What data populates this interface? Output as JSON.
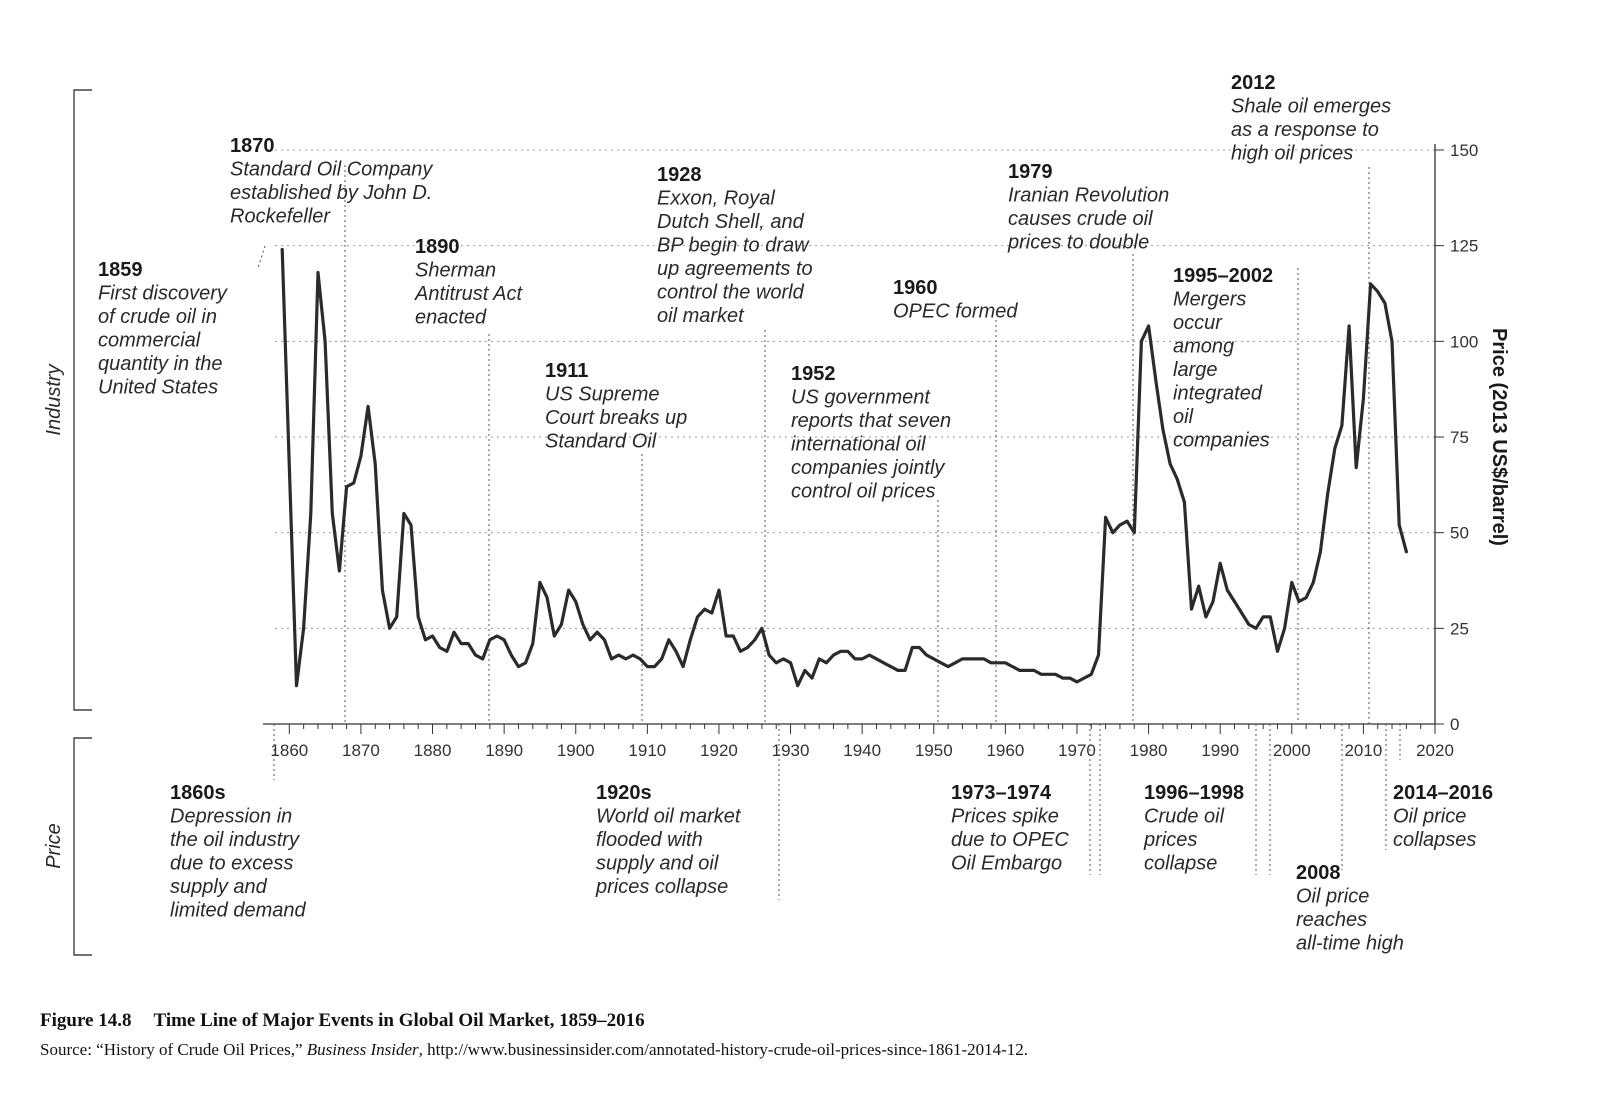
{
  "chart_data": {
    "type": "line",
    "title": "",
    "xlabel": "",
    "ylabel": "Price (2013 US$/barrel)",
    "xlim": [
      1858,
      2020
    ],
    "ylim": [
      0,
      150
    ],
    "x_ticks": [
      "1860",
      "1870",
      "1880",
      "1890",
      "1900",
      "1910",
      "1920",
      "1930",
      "1940",
      "1950",
      "1960",
      "1970",
      "1980",
      "1990",
      "2000",
      "2010",
      "2020"
    ],
    "y_ticks": [
      "0",
      "25",
      "50",
      "75",
      "100",
      "125",
      "150"
    ],
    "grid": "horizontal dotted",
    "bracket_labels": [
      "Industry",
      "Price"
    ],
    "series": [
      {
        "points": [
          [
            1859,
            124
          ],
          [
            1861,
            10
          ],
          [
            1862,
            25
          ],
          [
            1863,
            55
          ],
          [
            1864,
            118
          ],
          [
            1865,
            100
          ],
          [
            1866,
            55
          ],
          [
            1867,
            40
          ],
          [
            1868,
            62
          ],
          [
            1869,
            63
          ],
          [
            1870,
            70
          ],
          [
            1871,
            83
          ],
          [
            1872,
            68
          ],
          [
            1873,
            35
          ],
          [
            1874,
            25
          ],
          [
            1875,
            28
          ],
          [
            1876,
            55
          ],
          [
            1877,
            52
          ],
          [
            1878,
            28
          ],
          [
            1879,
            22
          ],
          [
            1880,
            23
          ],
          [
            1881,
            20
          ],
          [
            1882,
            19
          ],
          [
            1883,
            24
          ],
          [
            1884,
            21
          ],
          [
            1885,
            21
          ],
          [
            1886,
            18
          ],
          [
            1887,
            17
          ],
          [
            1888,
            22
          ],
          [
            1889,
            23
          ],
          [
            1890,
            22
          ],
          [
            1891,
            18
          ],
          [
            1892,
            15
          ],
          [
            1893,
            16
          ],
          [
            1894,
            21
          ],
          [
            1895,
            37
          ],
          [
            1896,
            33
          ],
          [
            1897,
            23
          ],
          [
            1898,
            26
          ],
          [
            1899,
            35
          ],
          [
            1900,
            32
          ],
          [
            1901,
            26
          ],
          [
            1902,
            22
          ],
          [
            1903,
            24
          ],
          [
            1904,
            22
          ],
          [
            1905,
            17
          ],
          [
            1906,
            18
          ],
          [
            1907,
            17
          ],
          [
            1908,
            18
          ],
          [
            1909,
            17
          ],
          [
            1910,
            15
          ],
          [
            1911,
            15
          ],
          [
            1912,
            17
          ],
          [
            1913,
            22
          ],
          [
            1914,
            19
          ],
          [
            1915,
            15
          ],
          [
            1916,
            22
          ],
          [
            1917,
            28
          ],
          [
            1918,
            30
          ],
          [
            1919,
            29
          ],
          [
            1920,
            35
          ],
          [
            1921,
            23
          ],
          [
            1922,
            23
          ],
          [
            1923,
            19
          ],
          [
            1924,
            20
          ],
          [
            1925,
            22
          ],
          [
            1926,
            25
          ],
          [
            1927,
            18
          ],
          [
            1928,
            16
          ],
          [
            1929,
            17
          ],
          [
            1930,
            16
          ],
          [
            1931,
            10
          ],
          [
            1932,
            14
          ],
          [
            1933,
            12
          ],
          [
            1934,
            17
          ],
          [
            1935,
            16
          ],
          [
            1936,
            18
          ],
          [
            1937,
            19
          ],
          [
            1938,
            19
          ],
          [
            1939,
            17
          ],
          [
            1940,
            17
          ],
          [
            1941,
            18
          ],
          [
            1942,
            17
          ],
          [
            1943,
            16
          ],
          [
            1944,
            15
          ],
          [
            1945,
            14
          ],
          [
            1946,
            14
          ],
          [
            1947,
            20
          ],
          [
            1948,
            20
          ],
          [
            1949,
            18
          ],
          [
            1950,
            17
          ],
          [
            1951,
            16
          ],
          [
            1952,
            15
          ],
          [
            1953,
            16
          ],
          [
            1954,
            17
          ],
          [
            1955,
            17
          ],
          [
            1956,
            17
          ],
          [
            1957,
            17
          ],
          [
            1958,
            16
          ],
          [
            1959,
            16
          ],
          [
            1960,
            16
          ],
          [
            1961,
            15
          ],
          [
            1962,
            14
          ],
          [
            1963,
            14
          ],
          [
            1964,
            14
          ],
          [
            1965,
            13
          ],
          [
            1966,
            13
          ],
          [
            1967,
            13
          ],
          [
            1968,
            12
          ],
          [
            1969,
            12
          ],
          [
            1970,
            11
          ],
          [
            1971,
            12
          ],
          [
            1972,
            13
          ],
          [
            1973,
            18
          ],
          [
            1974,
            54
          ],
          [
            1975,
            50
          ],
          [
            1976,
            52
          ],
          [
            1977,
            53
          ],
          [
            1978,
            50
          ],
          [
            1979,
            100
          ],
          [
            1980,
            104
          ],
          [
            1981,
            90
          ],
          [
            1982,
            77
          ],
          [
            1983,
            68
          ],
          [
            1984,
            64
          ],
          [
            1985,
            58
          ],
          [
            1986,
            30
          ],
          [
            1987,
            36
          ],
          [
            1988,
            28
          ],
          [
            1989,
            32
          ],
          [
            1990,
            42
          ],
          [
            1991,
            35
          ],
          [
            1992,
            32
          ],
          [
            1993,
            29
          ],
          [
            1994,
            26
          ],
          [
            1995,
            25
          ],
          [
            1996,
            28
          ],
          [
            1997,
            28
          ],
          [
            1998,
            19
          ],
          [
            1999,
            25
          ],
          [
            2000,
            37
          ],
          [
            2001,
            32
          ],
          [
            2002,
            33
          ],
          [
            2003,
            37
          ],
          [
            2004,
            45
          ],
          [
            2005,
            60
          ],
          [
            2006,
            72
          ],
          [
            2007,
            78
          ],
          [
            2008,
            104
          ],
          [
            2009,
            67
          ],
          [
            2010,
            85
          ],
          [
            2011,
            115
          ],
          [
            2012,
            113
          ],
          [
            2013,
            110
          ],
          [
            2014,
            100
          ],
          [
            2015,
            52
          ],
          [
            2016,
            45
          ]
        ]
      }
    ],
    "annotations": [
      {
        "year": "1870",
        "lines": [
          "Standard Oil Company",
          "established by John D.",
          "Rockefeller"
        ]
      },
      {
        "year": "1859",
        "lines": [
          "First discovery",
          "of crude oil in",
          "commercial",
          "quantity in the",
          "United States"
        ]
      },
      {
        "year": "1890",
        "lines": [
          "Sherman",
          "Antitrust Act",
          "enacted"
        ]
      },
      {
        "year": "1911",
        "lines": [
          "US Supreme",
          "Court breaks up",
          "Standard Oil"
        ]
      },
      {
        "year": "1928",
        "lines": [
          "Exxon, Royal",
          "Dutch Shell, and",
          "BP begin to draw",
          "up agreements to",
          "control the world",
          "oil market"
        ]
      },
      {
        "year": "1952",
        "lines": [
          "US government",
          "reports that seven",
          "international oil",
          "companies jointly",
          "control oil prices"
        ]
      },
      {
        "year": "1960",
        "lines": [
          "OPEC formed"
        ]
      },
      {
        "year": "1979",
        "lines": [
          "Iranian Revolution",
          "causes crude oil",
          "prices to double"
        ]
      },
      {
        "year": "1995–2002",
        "lines": [
          "Mergers",
          "occur",
          "among",
          "large",
          "integrated",
          "oil",
          "companies"
        ]
      },
      {
        "year": "2012",
        "lines": [
          "Shale oil emerges",
          "as a response to",
          "high oil prices"
        ]
      },
      {
        "year": "1860s",
        "lines": [
          "Depression in",
          "the oil industry",
          "due to excess",
          "supply and",
          "limited demand"
        ]
      },
      {
        "year": "1920s",
        "lines": [
          "World oil market",
          "flooded with",
          "supply and oil",
          "prices collapse"
        ]
      },
      {
        "year": "1973–1974",
        "lines": [
          "Prices spike",
          "due to OPEC",
          "Oil Embargo"
        ]
      },
      {
        "year": "1996–1998",
        "lines": [
          "Crude oil",
          "prices",
          "collapse"
        ]
      },
      {
        "year": "2008",
        "lines": [
          "Oil price",
          "reaches",
          "all-time high"
        ]
      },
      {
        "year": "2014–2016",
        "lines": [
          "Oil price",
          "collapses"
        ]
      }
    ]
  },
  "caption": {
    "figure_label": "Figure 14.8",
    "figure_title": "Time Line of Major Events in Global Oil Market, 1859–2016",
    "source_prefix": "Source: “History of Crude Oil Prices,” ",
    "source_publication": "Business Insider",
    "source_suffix": ", http://www.businessinsider.com/annotated-history-crude-oil-prices-since-1861-2014-12."
  }
}
